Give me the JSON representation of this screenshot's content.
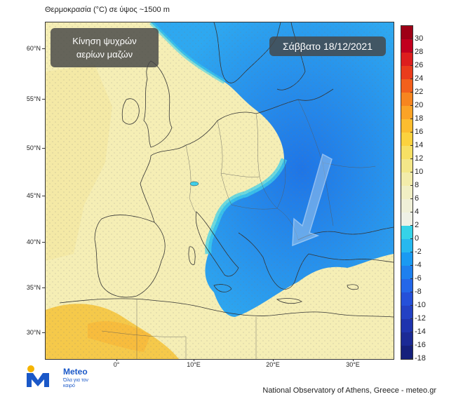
{
  "figure": {
    "title": "Θερμοκρασία (°C) σε ύψος ~1500 m",
    "credit": "National Observatory of Athens, Greece - meteo.gr"
  },
  "annotation": {
    "line1": "Κίνηση ψυχρών",
    "line2": "αερίων μαζών",
    "arrow_direction": "south-southwest"
  },
  "date_label": "Σάββατο 18/12/2021",
  "axes": {
    "latitude_labels": [
      "60°N",
      "55°N",
      "50°N",
      "45°N",
      "40°N",
      "35°N",
      "30°N"
    ],
    "longitude_labels": [
      "0°",
      "10°E",
      "20°E",
      "30°E"
    ]
  },
  "colorbar": {
    "labels": [
      "30",
      "28",
      "26",
      "24",
      "22",
      "20",
      "18",
      "16",
      "14",
      "12",
      "10",
      "8",
      "6",
      "4",
      "2",
      "0",
      "-2",
      "-4",
      "-6",
      "-8",
      "-10",
      "-12",
      "-14",
      "-16",
      "-18"
    ],
    "colors": [
      "#9e0016",
      "#c2001f",
      "#dd1e1e",
      "#ea3c1c",
      "#f2601c",
      "#f7851f",
      "#fba326",
      "#fdbd2f",
      "#fcd23e",
      "#f7e064",
      "#f4e789",
      "#f3ecaa",
      "#f1efc4",
      "#f0f0d8",
      "#eff1e6",
      "#36d3e8",
      "#27b8ef",
      "#1a9af2",
      "#1e80ee",
      "#2467e8",
      "#2550d9",
      "#2341c4",
      "#1f34ae",
      "#1b2a96",
      "#15207c"
    ]
  },
  "logo": {
    "wordmark": "Meteo",
    "tagline": "Όλα για τον καιρό"
  },
  "map_colors": {
    "warm_land": "#f5eeb5",
    "warm_sea": "#f3e7a0",
    "hot_south": "#f5c94a",
    "cold_core": "#1f75e6",
    "cold_edge": "#2ea8f0",
    "cyan_front": "#3fd0ea"
  }
}
